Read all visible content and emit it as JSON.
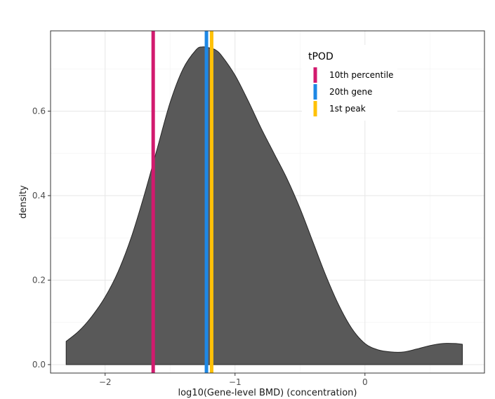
{
  "chart_data": {
    "type": "area",
    "title": "",
    "xlabel": "log10(Gene-level BMD) (concentration)",
    "ylabel": "density",
    "xlim": [
      -2.42,
      0.92
    ],
    "ylim": [
      -0.02,
      0.79
    ],
    "x_ticks": [
      -2,
      -1,
      0
    ],
    "x_tick_labels": [
      "−2",
      "−1",
      "0"
    ],
    "y_ticks": [
      0.0,
      0.2,
      0.4,
      0.6
    ],
    "y_tick_labels": [
      "0.0",
      "0.2",
      "0.4",
      "0.6"
    ],
    "grid": true,
    "fill_color": "#595959",
    "density": {
      "x": [
        -2.3,
        -2.2,
        -2.1,
        -2.0,
        -1.9,
        -1.8,
        -1.7,
        -1.6,
        -1.5,
        -1.4,
        -1.3,
        -1.25,
        -1.2,
        -1.15,
        -1.1,
        -1.0,
        -0.9,
        -0.8,
        -0.7,
        -0.6,
        -0.5,
        -0.4,
        -0.3,
        -0.2,
        -0.1,
        0.0,
        0.1,
        0.2,
        0.3,
        0.4,
        0.5,
        0.6,
        0.7,
        0.75
      ],
      "y": [
        0.055,
        0.08,
        0.115,
        0.16,
        0.22,
        0.3,
        0.4,
        0.51,
        0.62,
        0.7,
        0.745,
        0.752,
        0.75,
        0.745,
        0.73,
        0.685,
        0.625,
        0.56,
        0.5,
        0.44,
        0.37,
        0.29,
        0.21,
        0.14,
        0.085,
        0.05,
        0.035,
        0.03,
        0.03,
        0.037,
        0.045,
        0.05,
        0.05,
        0.048
      ]
    },
    "legend": {
      "title": "tPOD",
      "position": "top-right",
      "entries": [
        {
          "name": "10th percentile",
          "color": "#D21A6E",
          "x": -1.63
        },
        {
          "name": "20th gene",
          "color": "#1E88E5",
          "x": -1.22
        },
        {
          "name": "1st peak",
          "color": "#FFC107",
          "x": -1.18
        }
      ]
    }
  }
}
